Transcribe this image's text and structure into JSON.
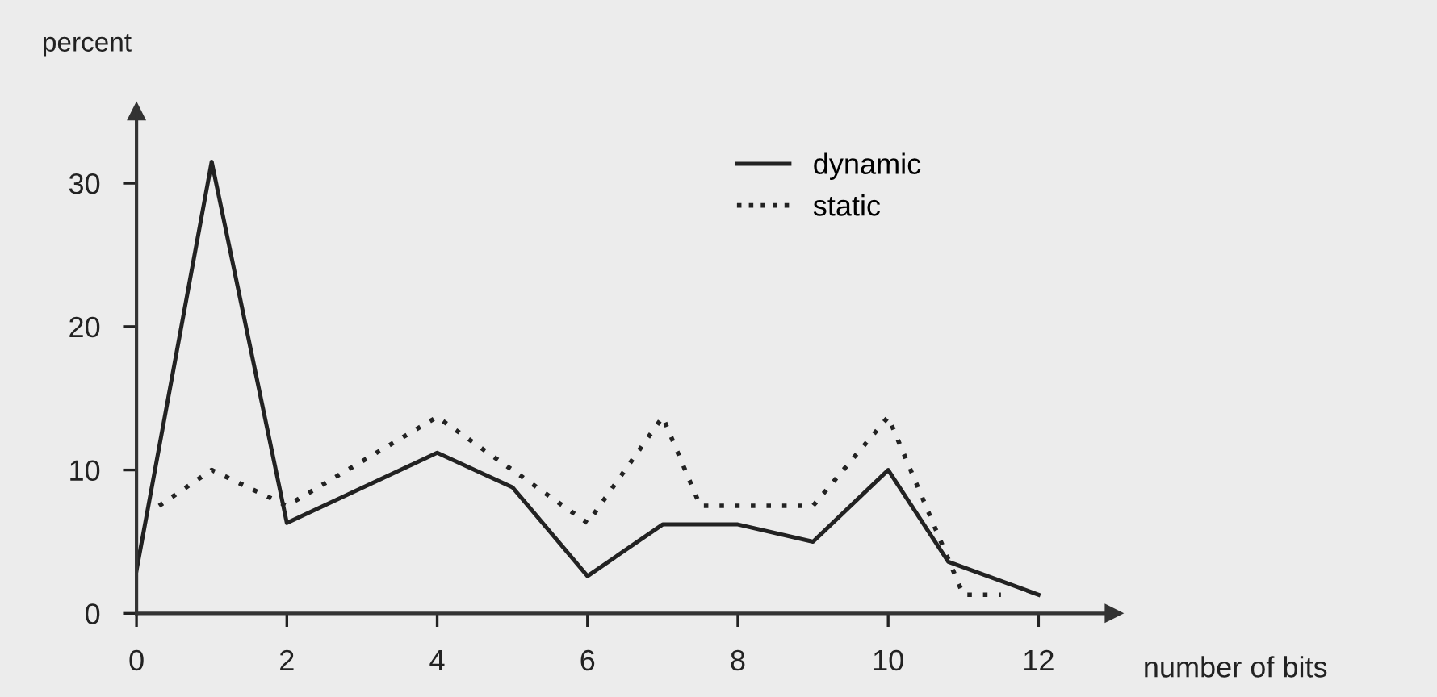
{
  "chart_data": {
    "type": "line",
    "ylabel": "percent",
    "xlabel": "number of bits",
    "xlim": [
      0,
      13
    ],
    "xticks": [
      0,
      2,
      4,
      6,
      8,
      10,
      12
    ],
    "ylim": [
      0,
      35
    ],
    "yticks": [
      0,
      10,
      20,
      30
    ],
    "grid": false,
    "legend": "top right",
    "marker": "none",
    "series": [
      {
        "name": "dynamic",
        "color": "#222222",
        "line_style": "solid",
        "x": [
          0,
          1,
          2,
          4,
          5,
          6,
          7,
          8,
          9,
          10,
          10.8,
          12
        ],
        "values": [
          3,
          31.5,
          6.3,
          11.2,
          8.8,
          2.6,
          6.2,
          6.2,
          5,
          10,
          3.6,
          1.3
        ]
      },
      {
        "name": "static",
        "color": "#222222",
        "line_style": "dotted",
        "x": [
          0.3,
          1,
          2,
          4,
          6,
          7,
          7.5,
          9,
          10,
          11,
          11.5
        ],
        "values": [
          7.5,
          10,
          7.5,
          13.7,
          6.3,
          13.7,
          7.5,
          7.5,
          13.7,
          1.3,
          1.3
        ]
      }
    ]
  }
}
